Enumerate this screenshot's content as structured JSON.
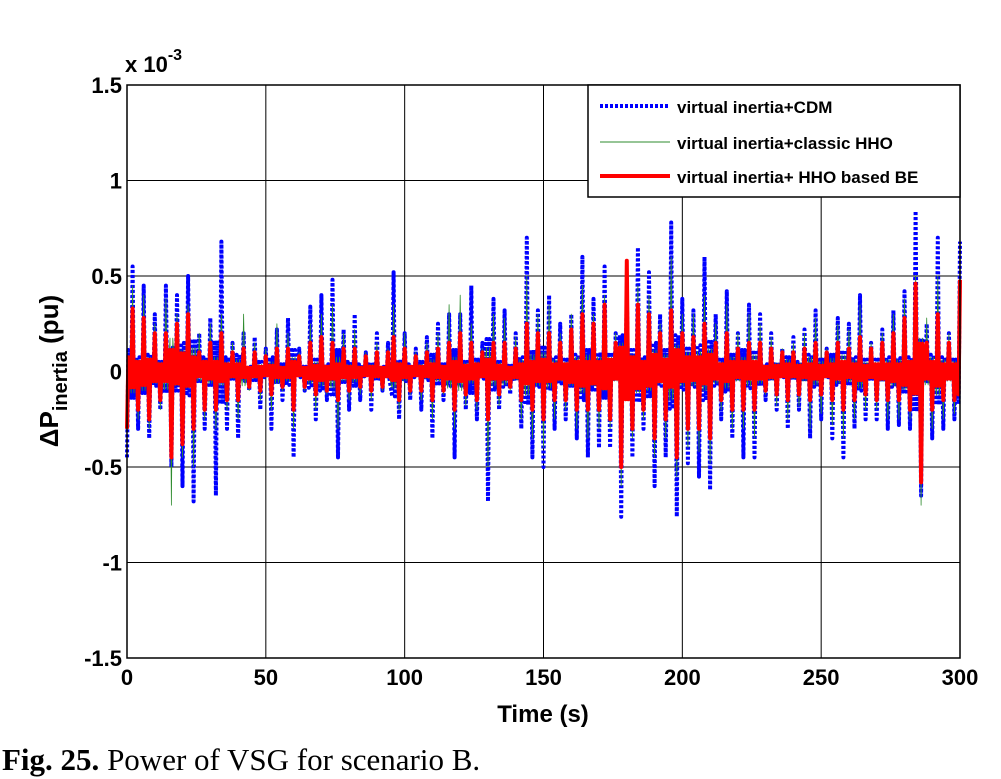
{
  "caption": {
    "label": "Fig. 25.",
    "text": " Power of VSG for scenario B."
  },
  "chart_data": {
    "type": "line",
    "title": "",
    "xlabel": "Time (s)",
    "ylabel_main": "ΔP",
    "ylabel_sub": "inertia",
    "ylabel_unit": " (pu)",
    "y_multiplier": "x 10",
    "y_multiplier_exp": "-3",
    "xlim": [
      0,
      300
    ],
    "ylim": [
      -1.5,
      1.5
    ],
    "xticks": [
      "0",
      "50",
      "100",
      "150",
      "200",
      "250",
      "300"
    ],
    "xtick_values": [
      0,
      50,
      100,
      150,
      200,
      250,
      300
    ],
    "yticks": [
      "1.5",
      "1",
      "0.5",
      "0",
      "-0.5",
      "-1",
      "-1.5"
    ],
    "ytick_values": [
      1.5,
      1,
      0.5,
      0,
      -0.5,
      -1,
      -1.5
    ],
    "grid": true,
    "legend_position": "top-right",
    "x": [
      0,
      2,
      4,
      6,
      8,
      10,
      12,
      14,
      16,
      18,
      20,
      22,
      24,
      26,
      28,
      30,
      32,
      34,
      36,
      38,
      40,
      42,
      44,
      46,
      48,
      50,
      52,
      54,
      56,
      58,
      60,
      62,
      64,
      66,
      68,
      70,
      72,
      74,
      76,
      78,
      80,
      82,
      84,
      86,
      88,
      90,
      92,
      94,
      96,
      98,
      100,
      102,
      104,
      106,
      108,
      110,
      112,
      114,
      116,
      118,
      120,
      122,
      124,
      126,
      128,
      130,
      132,
      134,
      136,
      138,
      140,
      142,
      144,
      146,
      148,
      150,
      152,
      154,
      156,
      158,
      160,
      162,
      164,
      166,
      168,
      170,
      172,
      174,
      176,
      178,
      180,
      182,
      184,
      186,
      188,
      190,
      192,
      194,
      196,
      198,
      200,
      202,
      204,
      206,
      208,
      210,
      212,
      214,
      216,
      218,
      220,
      222,
      224,
      226,
      228,
      230,
      232,
      234,
      236,
      238,
      240,
      242,
      244,
      246,
      248,
      250,
      252,
      254,
      256,
      258,
      260,
      262,
      264,
      266,
      268,
      270,
      272,
      274,
      276,
      278,
      280,
      282,
      284,
      286,
      288,
      290,
      292,
      294,
      296,
      298,
      300
    ],
    "series": [
      {
        "name": "virtual inertia+CDM",
        "color": "#0000ff",
        "style": "dotted",
        "values": [
          -0.45,
          0.55,
          -0.3,
          0.45,
          -0.35,
          0.3,
          -0.2,
          0.45,
          -0.5,
          0.4,
          -0.6,
          0.5,
          -0.68,
          0.2,
          -0.3,
          0.28,
          -0.65,
          0.68,
          -0.3,
          0.15,
          -0.35,
          0.2,
          -0.1,
          0.18,
          -0.2,
          0.12,
          -0.3,
          0.22,
          -0.15,
          0.28,
          -0.45,
          0.12,
          -0.1,
          0.34,
          -0.25,
          0.4,
          -0.15,
          0.48,
          -0.45,
          0.22,
          -0.2,
          0.3,
          -0.15,
          0.1,
          -0.2,
          0.2,
          -0.1,
          0.15,
          0.52,
          -0.25,
          0.2,
          -0.15,
          0.12,
          -0.2,
          0.18,
          -0.35,
          0.25,
          -0.15,
          0.3,
          -0.45,
          0.3,
          -0.2,
          0.45,
          -0.25,
          0.15,
          -0.68,
          0.38,
          -0.2,
          0.32,
          -0.12,
          0.2,
          -0.3,
          0.7,
          -0.45,
          0.32,
          -0.5,
          0.4,
          -0.3,
          0.25,
          -0.25,
          0.3,
          -0.35,
          0.6,
          -0.45,
          0.38,
          -0.4,
          0.55,
          -0.4,
          0.2,
          -0.76,
          0.42,
          -0.45,
          0.65,
          -0.3,
          0.52,
          -0.6,
          0.3,
          -0.45,
          0.78,
          -0.76,
          0.38,
          -0.48,
          0.32,
          -0.55,
          0.6,
          -0.62,
          0.3,
          -0.25,
          0.42,
          -0.35,
          0.2,
          -0.45,
          0.35,
          -0.45,
          0.3,
          -0.15,
          0.2,
          -0.2,
          0.12,
          -0.3,
          0.18,
          -0.2,
          0.22,
          -0.35,
          0.32,
          -0.25,
          0.12,
          -0.35,
          0.28,
          -0.45,
          0.25,
          -0.3,
          0.4,
          -0.25,
          0.15,
          -0.25,
          0.22,
          -0.3,
          0.32,
          -0.28,
          0.42,
          -0.3,
          0.84,
          -0.65,
          0.25,
          -0.35,
          0.7,
          -0.3,
          0.2,
          -0.25,
          0.68,
          -0.62,
          -0.68
        ]
      },
      {
        "name": "virtual inertia+classic HHO",
        "color": "#2e8b2e",
        "style": "solid-thin",
        "values": [
          -0.3,
          0.45,
          -0.25,
          0.4,
          -0.3,
          0.25,
          -0.2,
          0.38,
          -0.7,
          0.3,
          -0.45,
          0.35,
          -0.5,
          0.2,
          -0.25,
          0.25,
          -0.3,
          0.3,
          -0.2,
          0.15,
          -0.25,
          0.3,
          -0.1,
          0.15,
          -0.15,
          0.12,
          -0.2,
          0.25,
          -0.1,
          0.2,
          -0.3,
          0.1,
          -0.1,
          0.25,
          -0.2,
          0.3,
          -0.12,
          0.35,
          -0.3,
          0.2,
          -0.15,
          0.22,
          -0.12,
          0.1,
          -0.15,
          0.15,
          -0.1,
          0.12,
          0.35,
          -0.2,
          0.2,
          -0.12,
          0.1,
          -0.15,
          0.15,
          -0.25,
          0.2,
          -0.12,
          0.35,
          -0.3,
          0.4,
          -0.18,
          0.25,
          -0.2,
          0.12,
          -0.5,
          0.3,
          -0.18,
          0.28,
          -0.1,
          0.18,
          -0.25,
          0.5,
          -0.35,
          0.3,
          -0.4,
          0.35,
          -0.25,
          0.2,
          -0.2,
          0.3,
          -0.3,
          0.45,
          -0.35,
          0.3,
          -0.3,
          0.4,
          -0.3,
          0.2,
          -0.6,
          0.35,
          -0.35,
          0.45,
          -0.25,
          0.4,
          -0.45,
          0.25,
          -0.35,
          0.6,
          -0.55,
          0.3,
          -0.4,
          0.3,
          -0.42,
          0.4,
          -0.48,
          0.25,
          -0.2,
          0.35,
          -0.3,
          0.2,
          -0.3,
          0.3,
          -0.35,
          0.25,
          -0.12,
          0.18,
          -0.18,
          0.12,
          -0.25,
          0.15,
          -0.18,
          0.2,
          -0.3,
          0.28,
          -0.22,
          0.12,
          -0.28,
          0.25,
          -0.35,
          0.22,
          -0.25,
          0.35,
          -0.2,
          0.15,
          -0.2,
          0.2,
          -0.25,
          0.3,
          -0.25,
          0.38,
          -0.25,
          0.5,
          -0.7,
          0.28,
          -0.3,
          0.5,
          -0.25,
          0.2,
          -0.22,
          0.45,
          -0.5,
          -0.45
        ]
      },
      {
        "name": "virtual inertia+ HHO based BE",
        "color": "#ff0000",
        "style": "solid-thick",
        "values": [
          -0.3,
          0.33,
          -0.2,
          0.28,
          -0.25,
          0.2,
          -0.15,
          0.2,
          -0.45,
          0.25,
          -0.38,
          0.3,
          -0.3,
          0.1,
          -0.2,
          0.15,
          -0.2,
          0.2,
          -0.15,
          0.1,
          -0.15,
          0.12,
          -0.08,
          0.1,
          -0.1,
          0.08,
          -0.12,
          0.12,
          -0.08,
          0.12,
          -0.2,
          0.08,
          -0.08,
          0.15,
          -0.12,
          0.18,
          -0.1,
          0.15,
          -0.15,
          0.12,
          -0.1,
          0.12,
          -0.08,
          0.08,
          -0.1,
          0.1,
          -0.08,
          0.1,
          0.18,
          -0.15,
          0.12,
          -0.1,
          0.08,
          -0.1,
          0.1,
          -0.15,
          0.12,
          -0.1,
          0.15,
          -0.2,
          0.2,
          -0.12,
          0.15,
          -0.15,
          0.1,
          -0.25,
          0.15,
          -0.12,
          0.15,
          -0.08,
          0.12,
          -0.15,
          0.25,
          -0.2,
          0.2,
          -0.25,
          0.2,
          -0.15,
          0.15,
          -0.15,
          0.22,
          -0.2,
          0.3,
          -0.2,
          0.25,
          -0.2,
          0.35,
          -0.25,
          0.15,
          -0.5,
          0.58,
          -0.3,
          0.35,
          -0.2,
          0.3,
          -0.35,
          0.2,
          -0.25,
          0.32,
          -0.45,
          0.2,
          -0.3,
          0.18,
          -0.3,
          0.25,
          -0.35,
          0.15,
          -0.15,
          0.2,
          -0.2,
          0.12,
          -0.2,
          0.15,
          -0.2,
          0.15,
          -0.1,
          0.12,
          -0.12,
          0.1,
          -0.15,
          0.1,
          -0.12,
          0.12,
          -0.15,
          0.15,
          -0.12,
          0.1,
          -0.15,
          0.15,
          -0.2,
          0.12,
          -0.15,
          0.18,
          -0.12,
          0.12,
          -0.15,
          0.15,
          -0.15,
          0.2,
          -0.15,
          0.28,
          -0.2,
          0.46,
          -0.58,
          0.15,
          -0.2,
          0.3,
          -0.15,
          0.15,
          -0.15,
          0.48,
          -0.2,
          -0.45
        ]
      }
    ]
  }
}
